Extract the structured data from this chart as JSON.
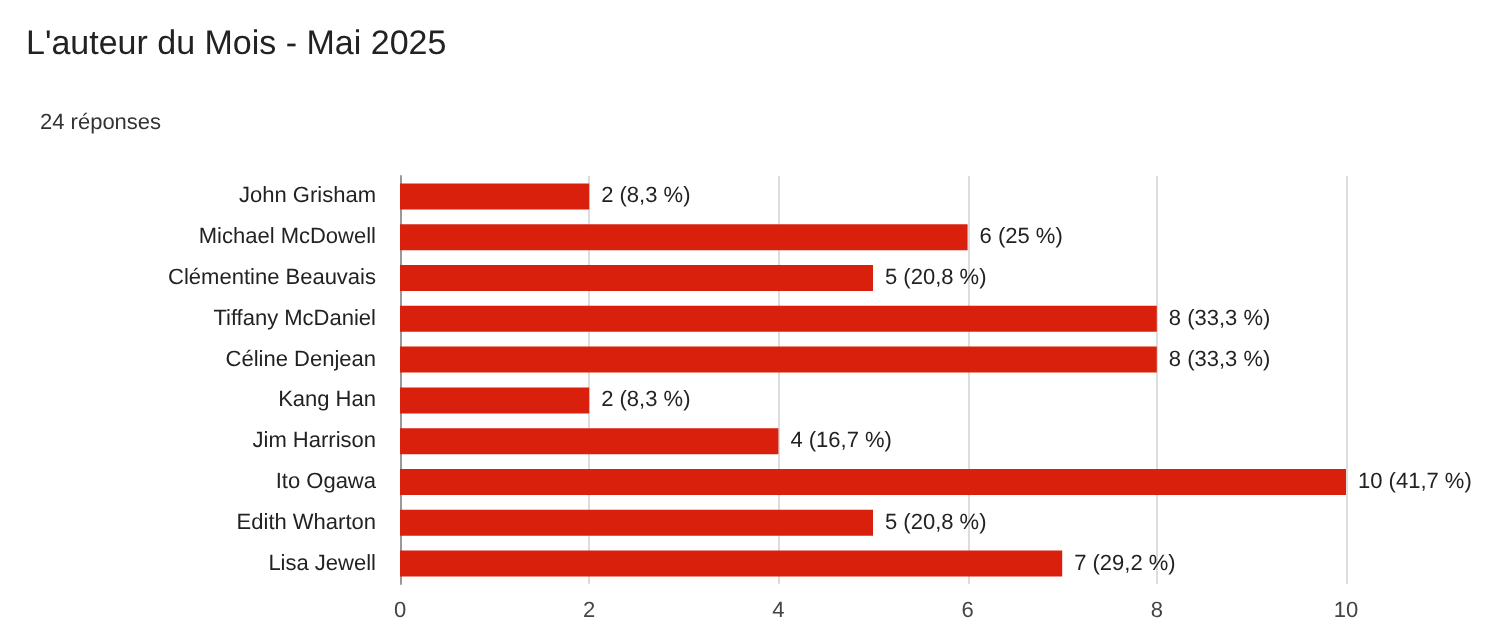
{
  "chart_data": {
    "type": "bar",
    "orientation": "horizontal",
    "title": "L'auteur du Mois - Mai 2025",
    "subtitle": "24 réponses",
    "categories": [
      "John Grisham",
      "Michael McDowell",
      "Clémentine Beauvais",
      "Tiffany McDaniel",
      "Céline Denjean",
      "Kang Han",
      "Jim Harrison",
      "Ito Ogawa",
      "Edith Wharton",
      "Lisa Jewell"
    ],
    "values": [
      2,
      6,
      5,
      8,
      8,
      2,
      4,
      10,
      5,
      7
    ],
    "value_labels": [
      "2 (8,3 %)",
      "6 (25 %)",
      "5 (20,8 %)",
      "8 (33,3 %)",
      "8 (33,3 %)",
      "2 (8,3 %)",
      "4 (16,7 %)",
      "10 (41,7 %)",
      "5 (20,8 %)",
      "7 (29,2 %)"
    ],
    "color": "#d9200c",
    "xlim": [
      0,
      10
    ],
    "xticks": [
      0,
      2,
      4,
      6,
      8,
      10
    ],
    "grid": "x"
  }
}
